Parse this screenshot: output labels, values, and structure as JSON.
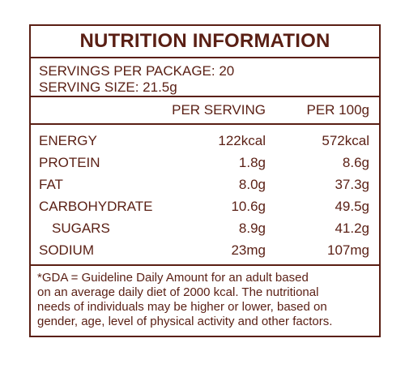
{
  "title": "NUTRITION INFORMATION",
  "servings_per_package": "SERVINGS PER PACKAGE: 20",
  "serving_size": "SERVING SIZE: 21.5g",
  "columns": {
    "col2": "PER SERVING",
    "col3": "PER 100g"
  },
  "rows": [
    {
      "label": "ENERGY",
      "per_serving": "122kcal",
      "per_100g": "572kcal"
    },
    {
      "label": "PROTEIN",
      "per_serving": "1.8g",
      "per_100g": "8.6g"
    },
    {
      "label": "FAT",
      "per_serving": "8.0g",
      "per_100g": "37.3g"
    },
    {
      "label": "CARBOHYDRATE",
      "per_serving": "10.6g",
      "per_100g": "49.5g"
    },
    {
      "label": "SUGARS",
      "per_serving": "8.9g",
      "per_100g": "41.2g"
    },
    {
      "label": "SODIUM",
      "per_serving": "23mg",
      "per_100g": "107mg"
    }
  ],
  "footnote": {
    "line1": "*GDA = Guideline Daily Amount for an adult based",
    "line2": "on an average daily diet of 2000 kcal. The nutritional",
    "line3": "needs of individuals may be higher or lower, based on",
    "line4": "gender, age, level of physical activity and other factors."
  },
  "colors": {
    "text": "#5a1f14",
    "border": "#5a1f14",
    "background": "#ffffff"
  }
}
